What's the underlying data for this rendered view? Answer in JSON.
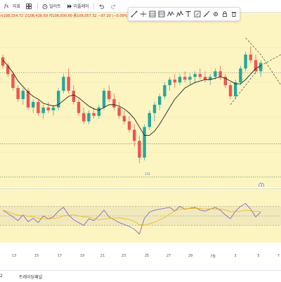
{
  "toolbar": {
    "indicators_label": "지표",
    "alerts_label": "얼러트",
    "replay_label": "리플레이"
  },
  "ohlc": {
    "open": "시108,154.72",
    "high": "고108,426.59",
    "low": "저108,000.00",
    "close": "종108,057.32",
    "change": "−97.20 (−0.09%)"
  },
  "price_marker": "172",
  "notification_count": "4",
  "x_axis": {
    "ticks": [
      "13",
      "15",
      "17",
      "19",
      "21",
      "23",
      "25",
      "27",
      "29",
      "7월",
      "3",
      "5",
      "7"
    ]
  },
  "bottom_bar": {
    "left_fragment": "2",
    "trading_panel_label": "트레이딩패널"
  },
  "colors": {
    "up": "#26a69a",
    "down": "#ef5350",
    "ma": "#1e1e1e",
    "rsi_line": "#7e57c2",
    "rsi_band": "#e8dfb8",
    "pane_bg": "#fdf5c1"
  },
  "icons": {
    "indicators": "fx-icon",
    "alerts": "alarm-clock-icon",
    "replay": "replay-icon",
    "undo": "undo-icon",
    "redo": "redo-icon"
  },
  "drawing_tools": [
    "trend-line-icon",
    "horizontal-line-icon",
    "brush-icon",
    "fib-icon",
    "zigzag-icon",
    "pattern-icon",
    "text-icon",
    "measure-icon",
    "ruler-icon",
    "settings-icon",
    "lock-icon",
    "trash-icon"
  ],
  "chart_data": {
    "type": "candlestick",
    "x_tick_labels": [
      "13",
      "15",
      "17",
      "19",
      "21",
      "23",
      "25",
      "27",
      "29",
      "7월",
      "3",
      "5",
      "7"
    ],
    "y_range": [
      0,
      100
    ],
    "grid": true,
    "series": [
      {
        "name": "",
        "type": "ohlc",
        "values": [
          [
            78,
            80,
            70,
            72
          ],
          [
            72,
            74,
            64,
            66
          ],
          [
            66,
            68,
            54,
            56
          ],
          [
            56,
            58,
            46,
            48
          ],
          [
            48,
            56,
            44,
            54
          ],
          [
            54,
            56,
            40,
            42
          ],
          [
            42,
            48,
            38,
            46
          ],
          [
            46,
            48,
            36,
            38
          ],
          [
            38,
            44,
            34,
            42
          ],
          [
            42,
            46,
            38,
            40
          ],
          [
            40,
            44,
            36,
            42
          ],
          [
            42,
            56,
            40,
            54
          ],
          [
            54,
            66,
            52,
            64
          ],
          [
            64,
            70,
            52,
            54
          ],
          [
            54,
            58,
            44,
            46
          ],
          [
            46,
            48,
            36,
            38
          ],
          [
            38,
            42,
            30,
            32
          ],
          [
            32,
            40,
            30,
            38
          ],
          [
            38,
            42,
            34,
            36
          ],
          [
            36,
            44,
            34,
            42
          ],
          [
            42,
            56,
            40,
            54
          ],
          [
            54,
            58,
            46,
            48
          ],
          [
            48,
            52,
            40,
            42
          ],
          [
            42,
            46,
            34,
            36
          ],
          [
            36,
            40,
            30,
            32
          ],
          [
            32,
            36,
            24,
            26
          ],
          [
            26,
            30,
            14,
            18
          ],
          [
            18,
            22,
            2,
            6
          ],
          [
            6,
            30,
            4,
            28
          ],
          [
            28,
            40,
            26,
            38
          ],
          [
            38,
            46,
            32,
            44
          ],
          [
            44,
            52,
            40,
            50
          ],
          [
            50,
            60,
            48,
            58
          ],
          [
            58,
            64,
            54,
            62
          ],
          [
            62,
            66,
            56,
            60
          ],
          [
            60,
            66,
            58,
            64
          ],
          [
            64,
            68,
            60,
            62
          ],
          [
            62,
            66,
            58,
            64
          ],
          [
            64,
            68,
            60,
            66
          ],
          [
            66,
            70,
            62,
            64
          ],
          [
            64,
            68,
            60,
            62
          ],
          [
            62,
            66,
            58,
            64
          ],
          [
            64,
            70,
            62,
            68
          ],
          [
            68,
            72,
            62,
            64
          ],
          [
            64,
            66,
            56,
            58
          ],
          [
            58,
            60,
            48,
            50
          ],
          [
            50,
            62,
            48,
            60
          ],
          [
            60,
            72,
            58,
            70
          ],
          [
            70,
            82,
            68,
            80
          ],
          [
            80,
            86,
            74,
            76
          ],
          [
            76,
            80,
            66,
            68
          ],
          [
            68,
            76,
            64,
            74
          ]
        ]
      },
      {
        "name": "",
        "type": "line",
        "role": "moving-average",
        "values": [
          76,
          72,
          67,
          61,
          57,
          53,
          50,
          48,
          45,
          44,
          43,
          44,
          47,
          50,
          51,
          49,
          46,
          43,
          41,
          40,
          42,
          44,
          44,
          43,
          41,
          38,
          34,
          28,
          22,
          22,
          25,
          30,
          36,
          42,
          48,
          52,
          56,
          58,
          60,
          61,
          62,
          62,
          63,
          64,
          63,
          61,
          59,
          59,
          62,
          66,
          70,
          72
        ]
      },
      {
        "name": "",
        "type": "line",
        "role": "rsi",
        "panel": "rsi",
        "range": [
          0,
          100
        ],
        "values": [
          62,
          55,
          48,
          40,
          52,
          38,
          45,
          36,
          50,
          44,
          48,
          60,
          68,
          52,
          42,
          36,
          30,
          44,
          40,
          50,
          62,
          48,
          42,
          36,
          32,
          28,
          22,
          12,
          45,
          58,
          62,
          64,
          66,
          68,
          60,
          70,
          64,
          66,
          68,
          62,
          60,
          64,
          68,
          62,
          52,
          44,
          60,
          70,
          76,
          64,
          48,
          58
        ]
      }
    ]
  }
}
